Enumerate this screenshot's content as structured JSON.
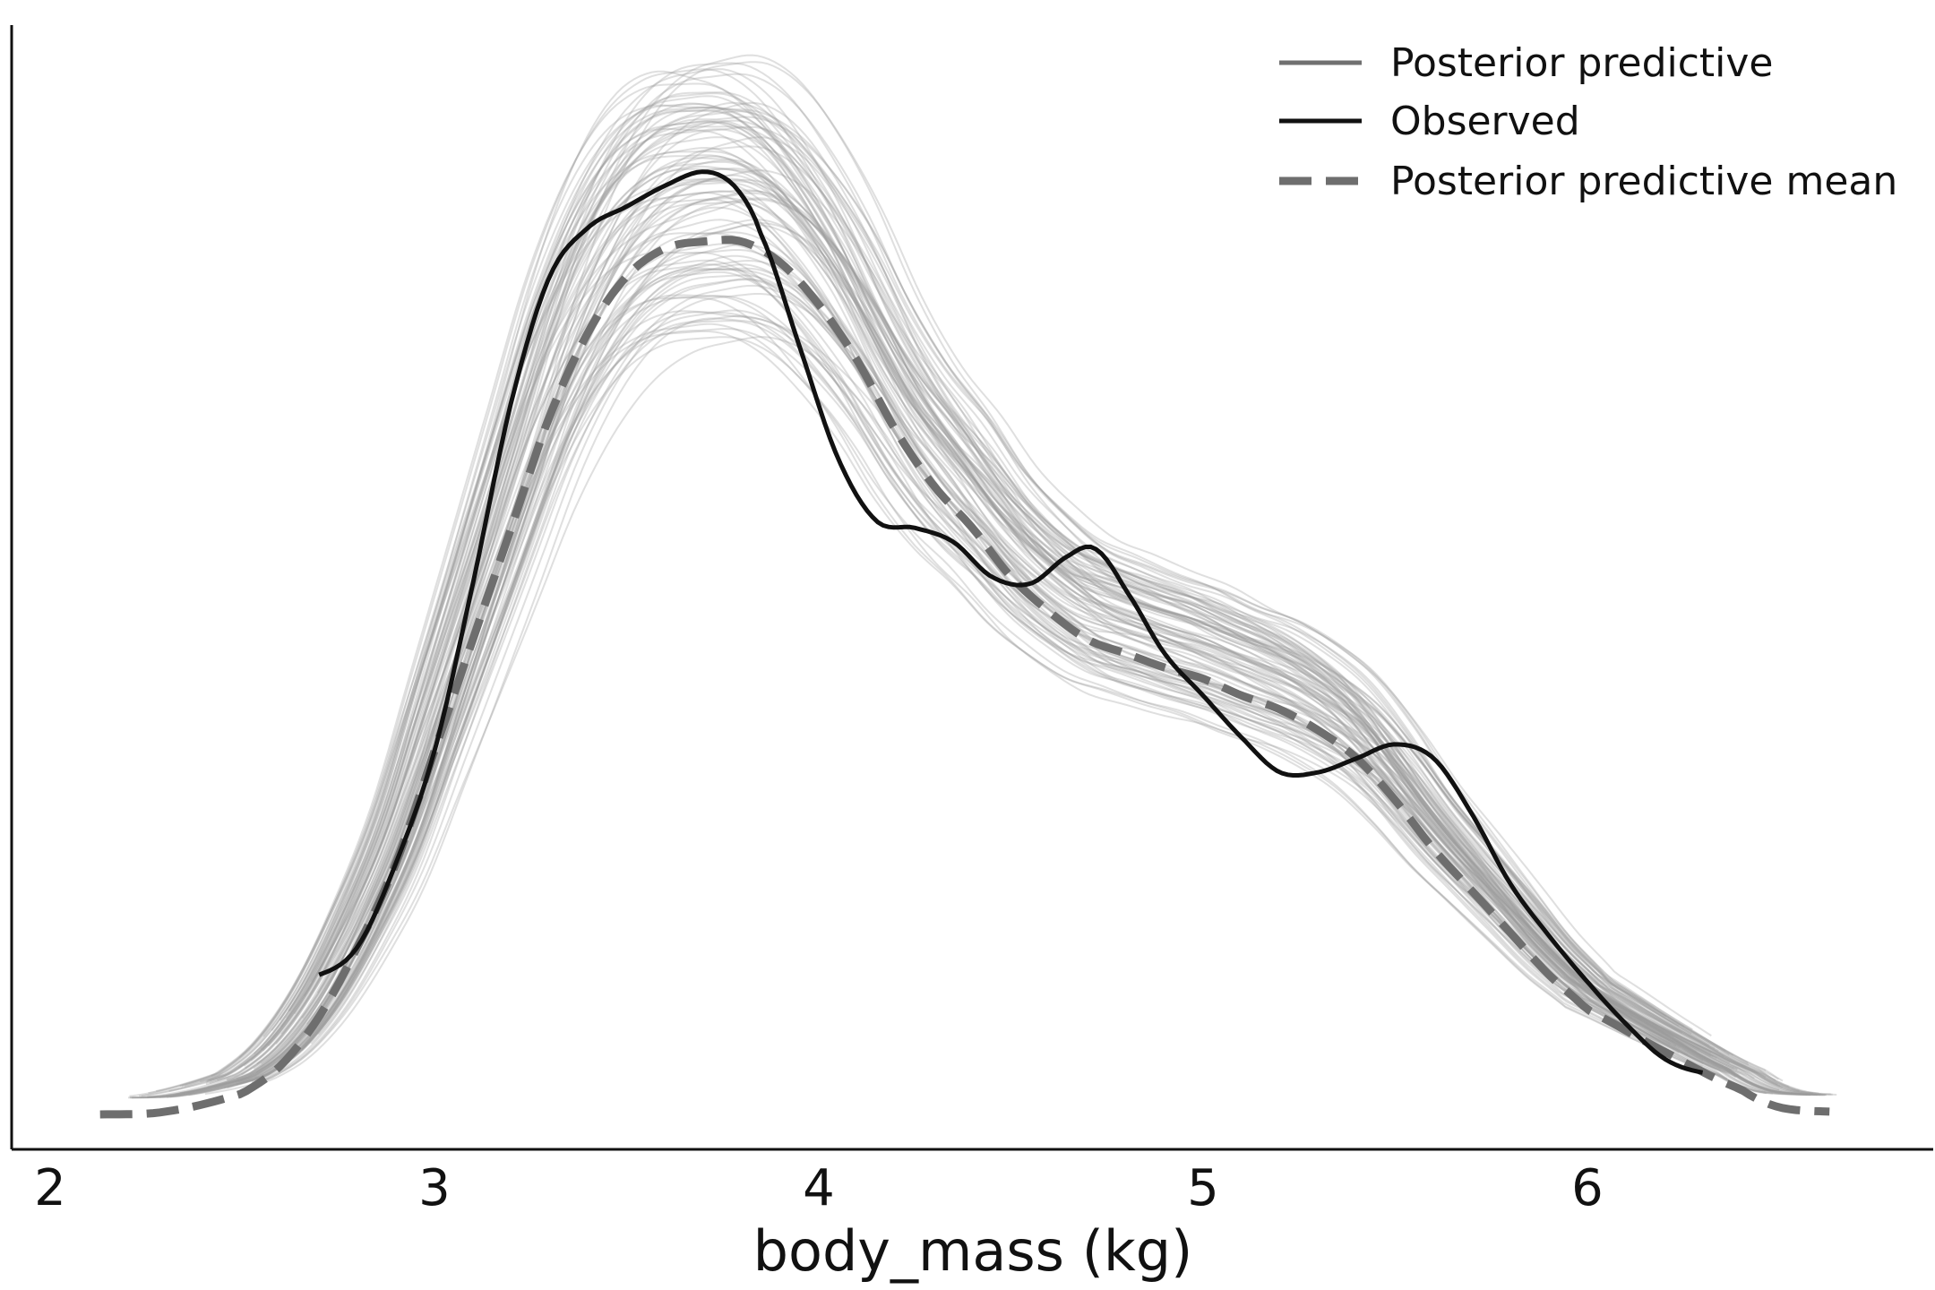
{
  "chart_data": {
    "type": "line",
    "title": "",
    "xlabel": "body_mass (kg)",
    "ylabel": "",
    "xlim": [
      1.9,
      6.9
    ],
    "ylim": [
      -0.025,
      0.78
    ],
    "xticks": [
      2,
      3,
      4,
      5,
      6
    ],
    "xtick_labels": [
      "2",
      "3",
      "4",
      "5",
      "6"
    ],
    "yticks_visible": false,
    "grid": false,
    "legend_position": "top-right",
    "legend": [
      {
        "label": "Posterior predictive",
        "style": "solid-gray"
      },
      {
        "label": "Observed",
        "style": "solid-black"
      },
      {
        "label": "Posterior predictive mean",
        "style": "dashed-gray"
      }
    ],
    "posterior_predictive_samples": 100,
    "series": [
      {
        "name": "Observed",
        "color": "#111111",
        "x": [
          2.7,
          2.8,
          2.9,
          3.0,
          3.1,
          3.2,
          3.3,
          3.4,
          3.5,
          3.6,
          3.7,
          3.78,
          3.85,
          3.95,
          4.05,
          4.15,
          4.25,
          4.35,
          4.45,
          4.55,
          4.65,
          4.72,
          4.8,
          4.9,
          5.0,
          5.1,
          5.2,
          5.3,
          5.4,
          5.5,
          5.6,
          5.7,
          5.8,
          5.9,
          6.0,
          6.1,
          6.2,
          6.3
        ],
        "y": [
          0.1,
          0.12,
          0.18,
          0.26,
          0.38,
          0.51,
          0.6,
          0.635,
          0.65,
          0.665,
          0.675,
          0.665,
          0.63,
          0.55,
          0.47,
          0.425,
          0.42,
          0.41,
          0.385,
          0.38,
          0.4,
          0.405,
          0.375,
          0.33,
          0.3,
          0.27,
          0.245,
          0.245,
          0.255,
          0.265,
          0.255,
          0.215,
          0.165,
          0.128,
          0.095,
          0.065,
          0.04,
          0.03
        ]
      },
      {
        "name": "Posterior predictive mean",
        "color": "#707070",
        "x": [
          2.13,
          2.3,
          2.5,
          2.6,
          2.7,
          2.8,
          2.9,
          3.0,
          3.1,
          3.2,
          3.3,
          3.4,
          3.5,
          3.6,
          3.7,
          3.8,
          3.9,
          4.0,
          4.1,
          4.2,
          4.3,
          4.4,
          4.5,
          4.6,
          4.7,
          4.8,
          4.9,
          5.0,
          5.1,
          5.2,
          5.3,
          5.4,
          5.5,
          5.6,
          5.7,
          5.8,
          5.9,
          6.0,
          6.2,
          6.4,
          6.5,
          6.63
        ],
        "y": [
          0.0,
          0.002,
          0.015,
          0.035,
          0.07,
          0.12,
          0.18,
          0.26,
          0.34,
          0.42,
          0.5,
          0.56,
          0.6,
          0.62,
          0.625,
          0.625,
          0.61,
          0.58,
          0.54,
          0.49,
          0.45,
          0.42,
          0.385,
          0.36,
          0.34,
          0.33,
          0.32,
          0.312,
          0.3,
          0.29,
          0.275,
          0.255,
          0.225,
          0.19,
          0.16,
          0.13,
          0.1,
          0.075,
          0.045,
          0.018,
          0.005,
          0.002
        ]
      }
    ]
  }
}
